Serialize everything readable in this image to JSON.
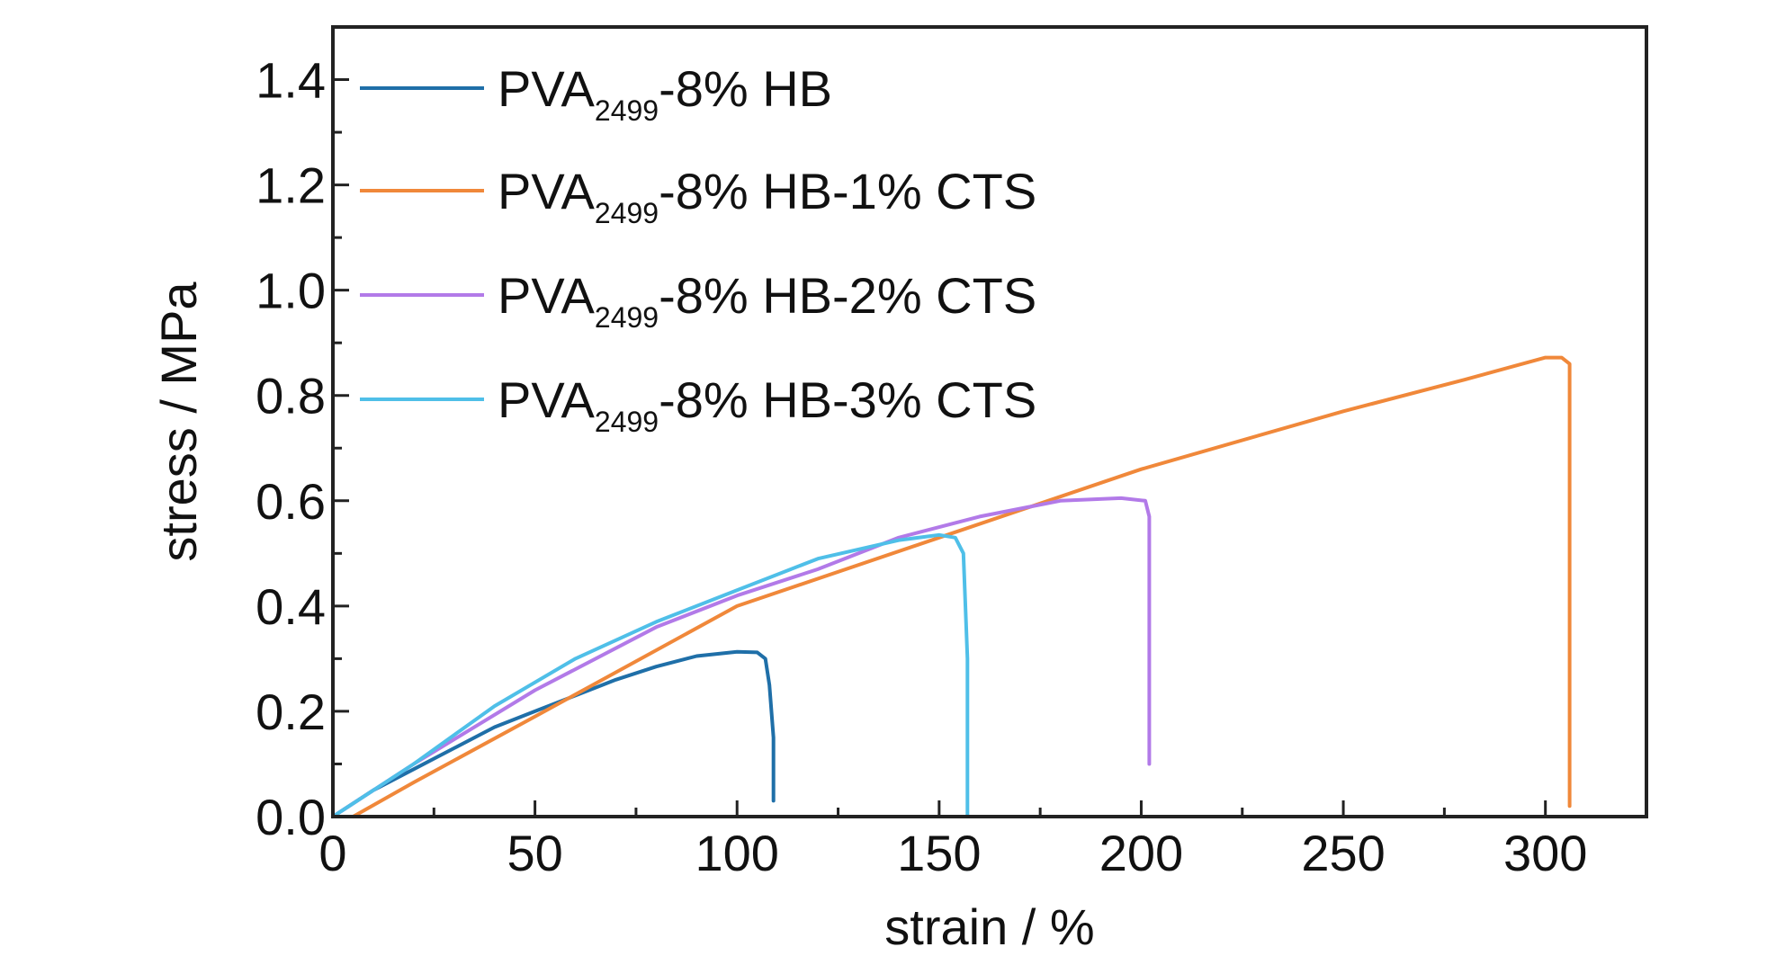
{
  "chart_data": {
    "type": "line",
    "title": "",
    "xlabel": "strain / %",
    "ylabel": "stress / MPa",
    "xlim": [
      0,
      325
    ],
    "ylim": [
      0,
      1.5
    ],
    "xticks": [
      0,
      50,
      100,
      150,
      200,
      250,
      300
    ],
    "yticks": [
      0.0,
      0.2,
      0.4,
      0.6,
      0.8,
      1.0,
      1.2,
      1.4
    ],
    "xtick_labels": [
      "0",
      "50",
      "100",
      "150",
      "200",
      "250",
      "300"
    ],
    "ytick_labels": [
      "0.0",
      "0.2",
      "0.4",
      "0.6",
      "0.8",
      "1.0",
      "1.2",
      "1.4"
    ],
    "grid": false,
    "legend_position": "top-left",
    "series": [
      {
        "name": "PVA2499-8% HB",
        "legend": {
          "prefix": "PVA",
          "subscript": "2499",
          "suffix": "-8% HB"
        },
        "color": "#1f6fa8",
        "x": [
          0,
          10,
          20,
          30,
          40,
          50,
          60,
          70,
          80,
          90,
          100,
          105,
          107,
          108,
          109,
          109
        ],
        "y": [
          0,
          0.05,
          0.09,
          0.13,
          0.17,
          0.2,
          0.23,
          0.26,
          0.285,
          0.305,
          0.313,
          0.312,
          0.3,
          0.25,
          0.15,
          0.03
        ]
      },
      {
        "name": "PVA2499-8% HB-1% CTS",
        "legend": {
          "prefix": "PVA",
          "subscript": "2499",
          "suffix": "-8% HB-1% CTS"
        },
        "color": "#f0883a",
        "x": [
          5,
          20,
          50,
          100,
          150,
          200,
          250,
          280,
          300,
          304,
          306,
          306
        ],
        "y": [
          0,
          0.065,
          0.19,
          0.4,
          0.53,
          0.66,
          0.77,
          0.83,
          0.872,
          0.872,
          0.86,
          0.02
        ]
      },
      {
        "name": "PVA2499-8% HB-2% CTS",
        "legend": {
          "prefix": "PVA",
          "subscript": "2499",
          "suffix": "-8% HB-2% CTS"
        },
        "color": "#b27ae8",
        "x": [
          0,
          20,
          50,
          80,
          100,
          120,
          140,
          160,
          180,
          195,
          201,
          202,
          202
        ],
        "y": [
          0,
          0.1,
          0.24,
          0.36,
          0.42,
          0.47,
          0.53,
          0.57,
          0.6,
          0.605,
          0.6,
          0.57,
          0.1
        ]
      },
      {
        "name": "PVA2499-8% HB-3% CTS",
        "legend": {
          "prefix": "PVA",
          "subscript": "2499",
          "suffix": "-8% HB-3% CTS"
        },
        "color": "#4fbfe8",
        "x": [
          0,
          20,
          40,
          60,
          80,
          100,
          120,
          140,
          150,
          154,
          156,
          157,
          157
        ],
        "y": [
          0,
          0.1,
          0.21,
          0.3,
          0.37,
          0.43,
          0.49,
          0.525,
          0.535,
          0.53,
          0.5,
          0.3,
          0.0
        ]
      }
    ]
  }
}
